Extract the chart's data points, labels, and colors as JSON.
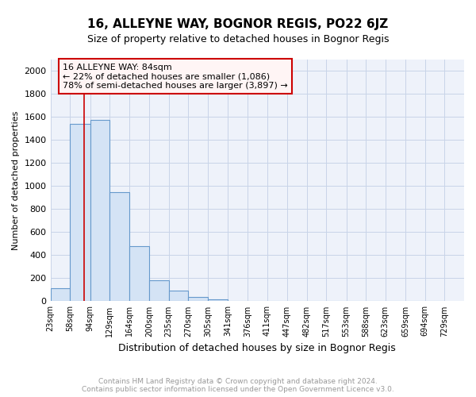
{
  "title": "16, ALLEYNE WAY, BOGNOR REGIS, PO22 6JZ",
  "subtitle": "Size of property relative to detached houses in Bognor Regis",
  "xlabel": "Distribution of detached houses by size in Bognor Regis",
  "ylabel": "Number of detached properties",
  "bar_values": [
    110,
    1540,
    1575,
    950,
    480,
    180,
    95,
    35,
    20,
    0,
    0,
    0,
    0,
    0,
    0,
    0,
    0,
    0,
    0,
    0
  ],
  "bar_left_edges": [
    23,
    58,
    94,
    129,
    164,
    200,
    235,
    270,
    305,
    341,
    376,
    411,
    447,
    482,
    517,
    553,
    588,
    623,
    659,
    694,
    729
  ],
  "bar_labels": [
    "23sqm",
    "58sqm",
    "94sqm",
    "129sqm",
    "164sqm",
    "200sqm",
    "235sqm",
    "270sqm",
    "305sqm",
    "341sqm",
    "376sqm",
    "411sqm",
    "447sqm",
    "482sqm",
    "517sqm",
    "553sqm",
    "588sqm",
    "623sqm",
    "659sqm",
    "694sqm",
    "729sqm"
  ],
  "bar_color": "#d4e3f5",
  "bar_edge_color": "#6699cc",
  "ylim": [
    0,
    2100
  ],
  "yticks": [
    0,
    200,
    400,
    600,
    800,
    1000,
    1200,
    1400,
    1600,
    1800,
    2000
  ],
  "red_line_x": 84,
  "annotation_line1": "16 ALLEYNE WAY: 84sqm",
  "annotation_line2": "← 22% of detached houses are smaller (1,086)",
  "annotation_line3": "78% of semi-detached houses are larger (3,897) →",
  "annotation_box_facecolor": "#fff5f5",
  "annotation_box_edgecolor": "#cc0000",
  "grid_color": "#c8d4e8",
  "background_color": "#eef2fa",
  "footer_text": "Contains HM Land Registry data © Crown copyright and database right 2024.\nContains public sector information licensed under the Open Government Licence v3.0.",
  "footer_color": "#999999",
  "title_fontsize": 11,
  "subtitle_fontsize": 9,
  "ylabel_fontsize": 8,
  "xlabel_fontsize": 9,
  "tick_fontsize": 8,
  "xtick_fontsize": 7
}
